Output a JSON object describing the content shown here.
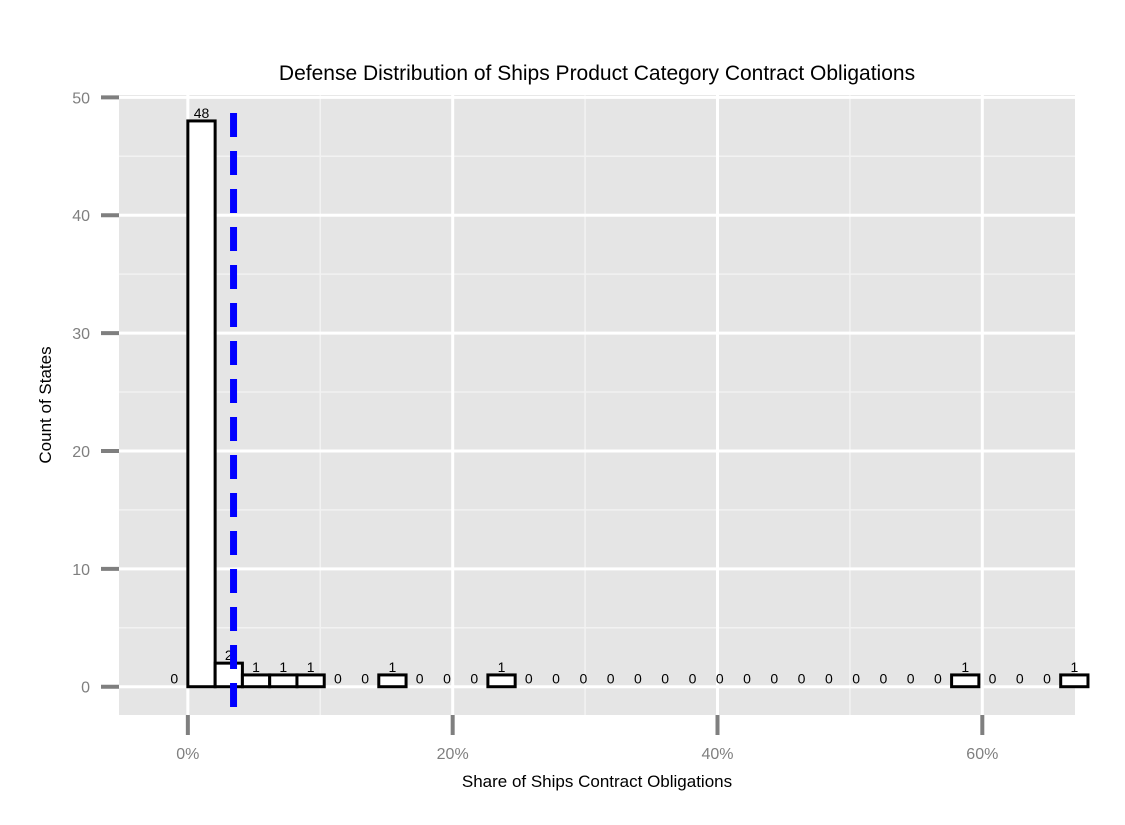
{
  "chart_data": {
    "type": "bar",
    "title": "Defense Distribution of Ships Product Category Contract Obligations",
    "xlabel": "Share of Ships Contract Obligations",
    "ylabel": "Count of States",
    "x_ticks": [
      "0%",
      "20%",
      "40%",
      "60%"
    ],
    "x_tick_values": [
      0,
      20,
      40,
      60
    ],
    "y_ticks": [
      "0",
      "10",
      "20",
      "30",
      "40",
      "50"
    ],
    "y_tick_values": [
      0,
      10,
      20,
      30,
      40,
      50
    ],
    "xlim": [
      -5.2,
      67
    ],
    "ylim": [
      -2.4,
      50.2
    ],
    "bin_width": 2.06,
    "bin_start": -2.06,
    "values": [
      0,
      48,
      2,
      1,
      1,
      1,
      0,
      0,
      1,
      0,
      0,
      0,
      1,
      0,
      0,
      0,
      0,
      0,
      0,
      0,
      0,
      0,
      0,
      0,
      0,
      0,
      0,
      0,
      0,
      1,
      0,
      0,
      0,
      1
    ],
    "bar_labels": [
      "0",
      "48",
      "2",
      "1",
      "1",
      "1",
      "0",
      "0",
      "1",
      "0",
      "0",
      "0",
      "1",
      "0",
      "0",
      "0",
      "0",
      "0",
      "0",
      "0",
      "0",
      "0",
      "0",
      "0",
      "0",
      "0",
      "0",
      "0",
      "0",
      "1",
      "0",
      "0",
      "0",
      "1"
    ],
    "reference_line": {
      "x": 3.45,
      "style": "dashed",
      "color": "#0000ff"
    },
    "bar_fill": "#ffffff",
    "bar_stroke": "#000000",
    "panel_background": "#e5e5e5",
    "grid": true,
    "legend": "none"
  }
}
